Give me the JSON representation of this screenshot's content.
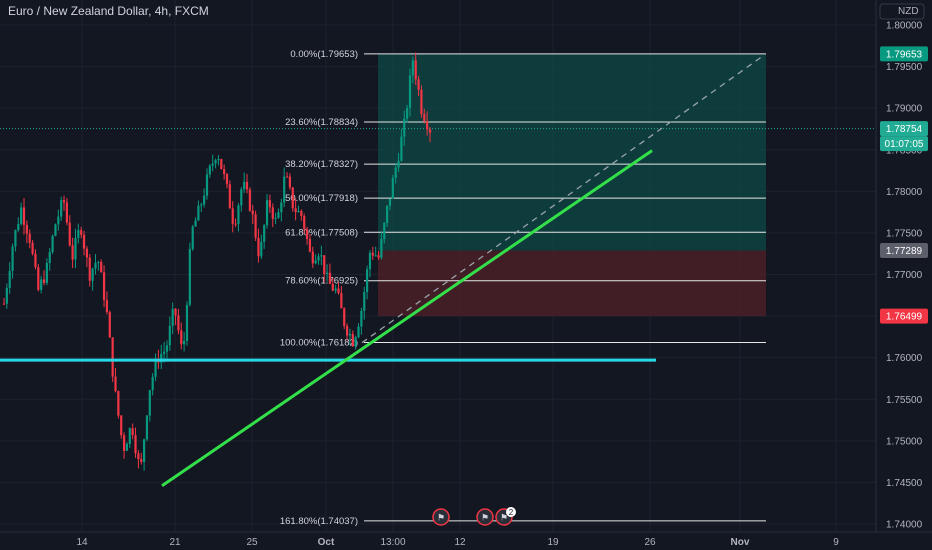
{
  "header": {
    "symbol_title": "Euro / New Zealand Dollar, 4h, FXCM"
  },
  "price_axis": {
    "currency_label": "NZD",
    "ticks": [
      "1.80000",
      "1.79500",
      "1.79000",
      "1.78500",
      "1.78000",
      "1.77500",
      "1.77000",
      "1.76500",
      "1.76000",
      "1.75500",
      "1.75000",
      "1.74500",
      "1.74000"
    ]
  },
  "time_axis": {
    "ticks": [
      "14",
      "21",
      "25",
      "Oct",
      "13:00",
      "12",
      "19",
      "26",
      "Nov",
      "9"
    ]
  },
  "price_badges": [
    {
      "key": "fib_high",
      "text": "1.79653",
      "bg": "#089981",
      "fg": "#ffffff"
    },
    {
      "key": "last",
      "text": "1.78754",
      "bg": "#22ab94",
      "fg": "#ffffff"
    },
    {
      "key": "countdown",
      "text": "01:07:05",
      "bg": "#22ab94",
      "fg": "#ffffff"
    },
    {
      "key": "entry",
      "text": "1.77289",
      "bg": "#5d606b",
      "fg": "#ffffff"
    },
    {
      "key": "stop",
      "text": "1.76499",
      "bg": "#f23645",
      "fg": "#ffffff"
    }
  ],
  "fib_levels": [
    {
      "label": "0.00%(1.79653)",
      "price": 1.79653
    },
    {
      "label": "23.60%(1.78834)",
      "price": 1.78834
    },
    {
      "label": "38.20%(1.78327)",
      "price": 1.78327
    },
    {
      "label": "50.00%(1.77918)",
      "price": 1.77918
    },
    {
      "label": "61.80%(1.77508)",
      "price": 1.77508
    },
    {
      "label": "78.60%(1.76925)",
      "price": 1.76925
    },
    {
      "label": "100.00%(1.76182)",
      "price": 1.76182
    },
    {
      "label": "161.80%(1.74037)",
      "price": 1.74037
    }
  ],
  "events": [
    {
      "type": "flag-icon",
      "count": ""
    },
    {
      "type": "flag-icon",
      "count": ""
    },
    {
      "type": "flag-icon",
      "count": "2"
    }
  ],
  "colors": {
    "background": "#131722",
    "up_candle": "#089981",
    "down_candle": "#f23645",
    "profit_zone": "#0e4a45",
    "loss_zone": "#4a1f26",
    "trendline": "#33e04a",
    "support_line": "#27d8e8",
    "projection": "#9aa3a8"
  },
  "chart_data": {
    "type": "candlestick",
    "interval": "4h",
    "ylim": [
      1.74,
      1.8005
    ],
    "support_price": 1.7597,
    "trendline": {
      "from_price": 1.7446,
      "to_price": 1.7849
    },
    "position": {
      "entry": 1.77289,
      "target": 1.79653,
      "stop": 1.76499
    },
    "last_price": 1.78754,
    "close_path": [
      1.7665,
      1.7735,
      1.778,
      1.7745,
      1.768,
      1.7705,
      1.776,
      1.779,
      1.772,
      1.776,
      1.77,
      1.772,
      1.766,
      1.756,
      1.749,
      1.752,
      1.746,
      1.756,
      1.76,
      1.761,
      1.766,
      1.76,
      1.775,
      1.778,
      1.782,
      1.785,
      1.781,
      1.776,
      1.781,
      1.778,
      1.772,
      1.779,
      1.776,
      1.782,
      1.778,
      1.777,
      1.772,
      1.773,
      1.769,
      1.768,
      1.764,
      1.762,
      1.766,
      1.773,
      1.772,
      1.778,
      1.783,
      1.788,
      1.796,
      1.79,
      1.7875
    ]
  }
}
